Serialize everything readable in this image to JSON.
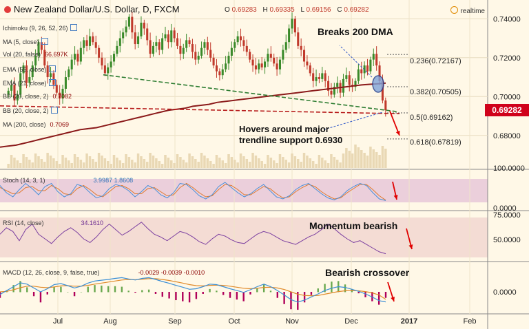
{
  "header": {
    "title": "New Zealand Dollar/U.S. Dollar, D, FXCM",
    "open_label": "O",
    "open": "0.69283",
    "high_label": "H",
    "high": "0.69335",
    "low_label": "L",
    "low": "0.69156",
    "close_label": "C",
    "close": "0.69282",
    "realtime_label": "realtime"
  },
  "indicators": [
    {
      "label": "Ichimoku (9, 26, 52, 26)",
      "value": ""
    },
    {
      "label": "MA (5, close)",
      "value": ""
    },
    {
      "label": "Vol (20, false)",
      "value": "66.697K"
    },
    {
      "label": "EMA (55, close)",
      "value": ""
    },
    {
      "label": "EMA (21, close)",
      "value": ""
    },
    {
      "label": "BB (20, close, 2)",
      "value": "0.7082"
    },
    {
      "label": "BB (20, close, 2)",
      "value": ""
    },
    {
      "label": "MA (200, close)",
      "value": "0.7069"
    }
  ],
  "annotations": {
    "breaks": "Breaks 200 DMA",
    "hovers_line1": "Hovers around major",
    "hovers_line2": "trendline support 0.6930",
    "momentum": "Momentum bearish",
    "crossover": "Bearish crossover"
  },
  "fib_levels": [
    {
      "label": "0.236(0.72167)",
      "price": 0.72167
    },
    {
      "label": "0.382(0.70505)",
      "price": 0.70505
    },
    {
      "label": "0.5(0.69162)",
      "price": 0.69162
    },
    {
      "label": "0.618(0.67819)",
      "price": 0.67819
    }
  ],
  "current_price": "0.69282",
  "colors": {
    "bull": "#3a8a2a",
    "bear": "#c0392b",
    "ma200": "#8b1a1a",
    "trend_green": "#2e7d32",
    "trend_red": "#b71c1c",
    "stoch_k": "#4a90d9",
    "stoch_d": "#e07a2f",
    "rsi": "#7b3fa0",
    "macd": "#3b8fd6",
    "signal": "#e08a2a",
    "price_tag": "#d0021b"
  },
  "chart_data": [
    {
      "type": "candlestick",
      "pane": "price",
      "x_ticks": [
        "Jul",
        "Aug",
        "Sep",
        "Oct",
        "Nov",
        "Dec",
        "2017",
        "Feb"
      ],
      "y_ticks": [
        "0.74000",
        "0.72000",
        "0.70000",
        "0.68000"
      ],
      "ylim": [
        0.664,
        0.744
      ],
      "close_series": [
        0.703,
        0.706,
        0.698,
        0.701,
        0.712,
        0.716,
        0.707,
        0.71,
        0.716,
        0.721,
        0.728,
        0.724,
        0.716,
        0.71,
        0.712,
        0.706,
        0.702,
        0.699,
        0.704,
        0.71,
        0.714,
        0.719,
        0.722,
        0.718,
        0.725,
        0.729,
        0.726,
        0.731,
        0.728,
        0.725,
        0.72,
        0.716,
        0.712,
        0.715,
        0.718,
        0.722,
        0.726,
        0.73,
        0.733,
        0.736,
        0.741,
        0.733,
        0.727,
        0.731,
        0.738,
        0.735,
        0.729,
        0.722,
        0.726,
        0.728,
        0.724,
        0.73,
        0.732,
        0.728,
        0.734,
        0.73,
        0.726,
        0.722,
        0.725,
        0.729,
        0.727,
        0.723,
        0.719,
        0.721,
        0.725,
        0.728,
        0.724,
        0.72,
        0.716,
        0.713,
        0.711,
        0.714,
        0.717,
        0.721,
        0.725,
        0.728,
        0.731,
        0.729,
        0.726,
        0.723,
        0.719,
        0.716,
        0.714,
        0.717,
        0.715,
        0.718,
        0.722,
        0.72,
        0.717,
        0.714,
        0.719,
        0.724,
        0.728,
        0.735,
        0.74,
        0.733,
        0.726,
        0.724,
        0.718,
        0.716,
        0.712,
        0.708,
        0.71,
        0.709,
        0.712,
        0.708,
        0.703,
        0.701,
        0.705,
        0.707,
        0.702,
        0.709,
        0.711,
        0.706,
        0.705,
        0.708,
        0.714,
        0.712,
        0.716,
        0.713,
        0.719,
        0.722,
        0.716,
        0.708,
        0.698,
        0.693
      ],
      "ma200": [
        0.674,
        0.6745,
        0.675,
        0.676,
        0.677,
        0.678,
        0.679,
        0.68,
        0.681,
        0.682,
        0.683,
        0.6835,
        0.684,
        0.685,
        0.686,
        0.687,
        0.688,
        0.689,
        0.69,
        0.691,
        0.692,
        0.693,
        0.6935,
        0.694,
        0.695,
        0.6955,
        0.696,
        0.697,
        0.6975,
        0.698,
        0.6985,
        0.699,
        0.6995,
        0.7,
        0.7005,
        0.701,
        0.7015,
        0.702,
        0.7025,
        0.703,
        0.7035,
        0.704,
        0.7045,
        0.705,
        0.7055,
        0.706,
        0.7063,
        0.7066,
        0.7069
      ],
      "annotations": [
        "Breaks 200 DMA",
        "Hovers around major trendline support 0.6930"
      ]
    },
    {
      "type": "line",
      "pane": "stochastic",
      "y_ticks": [
        "100.0000",
        "0.0000"
      ],
      "ylim": [
        0,
        100
      ],
      "series": [
        {
          "name": "K",
          "values": [
            75,
            40,
            20,
            55,
            85,
            60,
            30,
            70,
            85,
            45,
            20,
            35,
            80,
            70,
            40,
            15,
            25,
            60,
            80,
            70,
            50,
            20,
            45,
            75,
            60,
            30,
            15,
            40,
            85,
            80,
            55,
            25,
            10,
            30,
            70,
            90,
            65,
            40,
            20,
            35,
            60,
            80,
            50,
            20,
            10,
            25,
            55,
            75,
            85,
            60,
            35,
            15,
            5,
            20,
            50,
            70,
            85,
            75,
            40,
            10,
            2
          ]
        },
        {
          "name": "D",
          "values": [
            65,
            50,
            35,
            40,
            65,
            70,
            50,
            50,
            75,
            60,
            35,
            30,
            60,
            75,
            55,
            30,
            20,
            45,
            70,
            75,
            60,
            35,
            35,
            60,
            65,
            45,
            25,
            30,
            65,
            85,
            65,
            40,
            20,
            25,
            55,
            80,
            75,
            55,
            30,
            30,
            50,
            70,
            60,
            35,
            15,
            20,
            45,
            65,
            80,
            70,
            45,
            25,
            10,
            15,
            40,
            60,
            80,
            80,
            55,
            25,
            4
          ]
        }
      ],
      "values_label": "3.9987 1.8608"
    },
    {
      "type": "line",
      "pane": "rsi",
      "y_ticks": [
        "75.0000",
        "50.0000"
      ],
      "ylim": [
        30,
        76
      ],
      "series": [
        {
          "name": "RSI",
          "values": [
            55,
            62,
            58,
            48,
            60,
            66,
            55,
            50,
            45,
            52,
            58,
            62,
            57,
            50,
            46,
            52,
            60,
            66,
            60,
            54,
            58,
            63,
            68,
            61,
            55,
            52,
            48,
            53,
            58,
            56,
            52,
            47,
            44,
            50,
            55,
            53,
            49,
            46,
            45,
            50,
            55,
            58,
            56,
            52,
            48,
            46,
            44,
            48,
            52,
            55,
            60,
            66,
            61,
            55,
            50,
            46,
            48,
            44,
            40,
            36,
            34
          ]
        }
      ],
      "values_label": "34.1610"
    },
    {
      "type": "line",
      "pane": "macd",
      "y_ticks": [
        "0.0000"
      ],
      "ylim": [
        -0.008,
        0.008
      ],
      "series": [
        {
          "name": "MACD",
          "values": [
            -0.001,
            0.0005,
            0.002,
            0.0035,
            0.003,
            0.0015,
            0.0,
            0.0012,
            0.0028,
            0.0032,
            0.0024,
            0.0015,
            0.0022,
            0.0034,
            0.0042,
            0.0045,
            0.0048,
            0.0052,
            0.0055,
            0.005,
            0.0046,
            0.0052,
            0.0055,
            0.0048,
            0.004,
            0.0033,
            0.0025,
            0.0018,
            0.001,
            0.0012,
            0.002,
            0.003,
            0.0028,
            0.002,
            0.0012,
            0.0005,
            -0.0002,
            0.0008,
            0.002,
            0.003,
            0.002,
            0.0005,
            -0.0012,
            -0.003,
            -0.004,
            -0.0032,
            -0.002,
            -0.0008,
            0.0005,
            0.0014,
            0.002,
            0.0017,
            0.001,
            0.0002,
            -0.0008,
            -0.002,
            -0.0034,
            -0.0039
          ]
        },
        {
          "name": "Signal",
          "values": [
            0.0,
            0.0002,
            0.0008,
            0.0016,
            0.0022,
            0.0022,
            0.0018,
            0.0016,
            0.0019,
            0.0023,
            0.0024,
            0.0022,
            0.0022,
            0.0025,
            0.003,
            0.0034,
            0.0038,
            0.0042,
            0.0046,
            0.0048,
            0.0047,
            0.0049,
            0.0051,
            0.0051,
            0.0048,
            0.0044,
            0.0039,
            0.0034,
            0.0028,
            0.0024,
            0.0023,
            0.0025,
            0.0026,
            0.0025,
            0.0022,
            0.0018,
            0.0014,
            0.0012,
            0.0014,
            0.0017,
            0.0018,
            0.0015,
            0.0009,
            0.0,
            -0.0009,
            -0.0014,
            -0.0015,
            -0.0014,
            -0.0009,
            -0.0004,
            0.0001,
            0.0004,
            0.0005,
            0.0004,
            0.0001,
            -0.0004,
            -0.0012,
            -0.0029
          ]
        }
      ],
      "values_label": "-0.0029 -0.0039 -0.0010"
    }
  ]
}
